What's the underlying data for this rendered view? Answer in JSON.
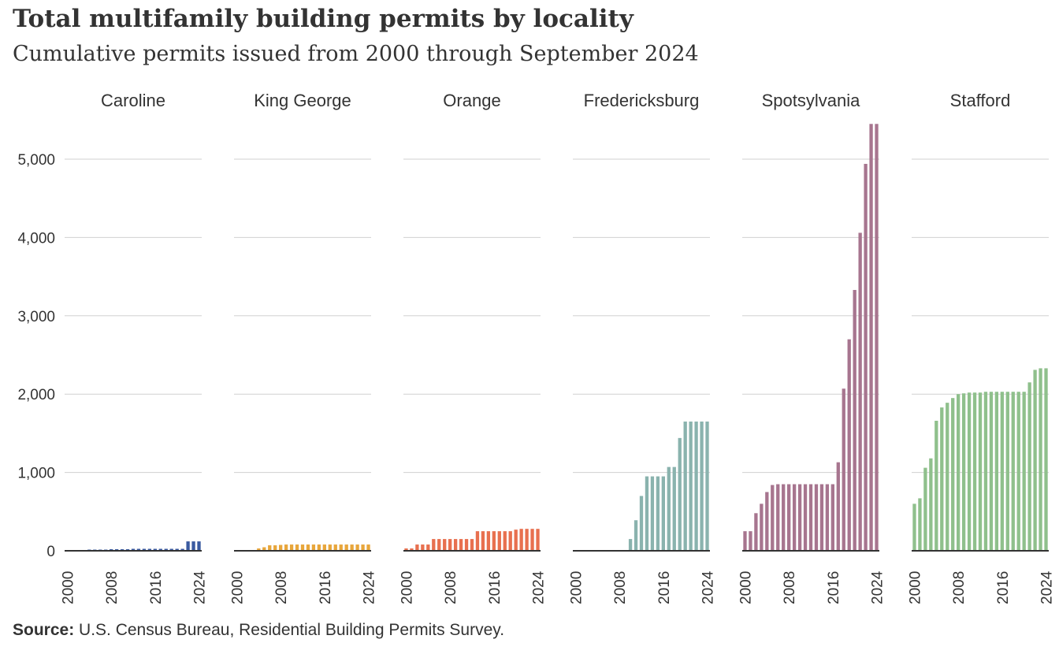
{
  "header": {
    "title": "Total multifamily building permits by locality",
    "subtitle": "Cumulative permits issued from 2000 through September 2024"
  },
  "footer": {
    "source_label": "Source:",
    "source_text": "U.S. Census Bureau, Residential Building Permits  Survey."
  },
  "chart_data": {
    "type": "bar",
    "layout": "small-multiples",
    "title": "Total multifamily building permits by locality",
    "subtitle": "Cumulative permits issued from 2000 through September 2024",
    "x": [
      2000,
      2001,
      2002,
      2003,
      2004,
      2005,
      2006,
      2007,
      2008,
      2009,
      2010,
      2011,
      2012,
      2013,
      2014,
      2015,
      2016,
      2017,
      2018,
      2019,
      2020,
      2021,
      2022,
      2023,
      2024
    ],
    "x_tick_labels": [
      "2000",
      "2008",
      "2016",
      "2024"
    ],
    "y_ticks": [
      0,
      1000,
      2000,
      3000,
      4000,
      5000
    ],
    "y_tick_labels": [
      "0",
      "1,000",
      "2,000",
      "3,000",
      "4,000",
      "5,000"
    ],
    "ylim": [
      0,
      5450
    ],
    "grid": true,
    "series": [
      {
        "name": "Caroline",
        "color": "#3a5aa0",
        "values": [
          0,
          0,
          0,
          0,
          15,
          15,
          15,
          15,
          20,
          20,
          20,
          20,
          25,
          25,
          25,
          25,
          25,
          25,
          25,
          25,
          25,
          25,
          120,
          120,
          120
        ]
      },
      {
        "name": "King George",
        "color": "#e8a63b",
        "values": [
          0,
          0,
          0,
          0,
          30,
          45,
          70,
          70,
          75,
          80,
          80,
          80,
          80,
          80,
          80,
          80,
          80,
          80,
          80,
          80,
          80,
          80,
          80,
          80,
          80
        ]
      },
      {
        "name": "Orange",
        "color": "#e8704f",
        "values": [
          30,
          30,
          80,
          80,
          80,
          150,
          150,
          150,
          150,
          150,
          150,
          150,
          150,
          250,
          250,
          250,
          250,
          250,
          250,
          250,
          270,
          280,
          280,
          280,
          280
        ]
      },
      {
        "name": "Fredericksburg",
        "color": "#8ab3ae",
        "values": [
          0,
          0,
          0,
          0,
          0,
          0,
          0,
          0,
          0,
          0,
          150,
          390,
          700,
          950,
          950,
          950,
          950,
          1070,
          1070,
          1440,
          1650,
          1650,
          1650,
          1650,
          1650
        ]
      },
      {
        "name": "Spotsylvania",
        "color": "#a7758f",
        "values": [
          250,
          250,
          480,
          600,
          750,
          840,
          850,
          850,
          850,
          850,
          850,
          850,
          850,
          850,
          850,
          850,
          850,
          1130,
          2070,
          2700,
          3330,
          4060,
          4940,
          5450,
          5450
        ]
      },
      {
        "name": "Stafford",
        "color": "#8fc08c",
        "values": [
          600,
          670,
          1060,
          1180,
          1660,
          1830,
          1890,
          1950,
          2000,
          2010,
          2020,
          2020,
          2020,
          2030,
          2030,
          2030,
          2030,
          2030,
          2030,
          2030,
          2030,
          2150,
          2310,
          2330,
          2330
        ]
      }
    ]
  }
}
